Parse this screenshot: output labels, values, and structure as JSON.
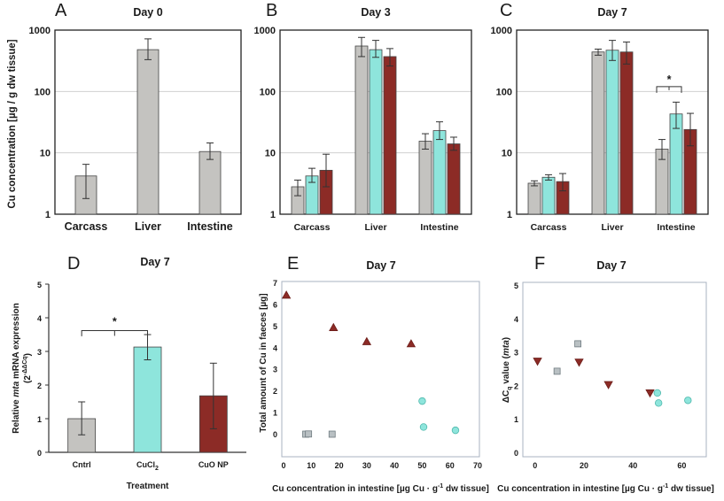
{
  "colors": {
    "cntrl": "#c4c3c0",
    "cucl2": "#8ee5dc",
    "cuonp": "#8c2b26",
    "frame": "#222222",
    "scatter_frame": "#a8b3c2",
    "grid": "#d0d0d0"
  },
  "shared_labels": {
    "y_axis_ABC": "Cu concentration [µg / g dw tissue]",
    "sig_star": "*"
  },
  "chart_data": [
    {
      "id": "A",
      "letter": "A",
      "title": "Day 0",
      "type": "bar",
      "yscale": "log",
      "ylim": [
        1,
        1000
      ],
      "yticks": [
        "1",
        "10",
        "100",
        "1000"
      ],
      "categories": [
        "Carcass",
        "Liver",
        "Intestine"
      ],
      "series": [
        {
          "name": "Cntrl",
          "values": [
            4.2,
            480,
            10.5
          ],
          "err_low": [
            1.8,
            330,
            7.8
          ],
          "err_high": [
            6.5,
            720,
            14.5
          ]
        }
      ]
    },
    {
      "id": "B",
      "letter": "B",
      "title": "Day 3",
      "type": "bar",
      "yscale": "log",
      "ylim": [
        1,
        1000
      ],
      "yticks": [
        "1",
        "10",
        "100",
        "1000"
      ],
      "categories": [
        "Carcass",
        "Liver",
        "Intestine"
      ],
      "series": [
        {
          "name": "Cntrl",
          "values": [
            2.8,
            550,
            15.5
          ],
          "err_low": [
            2.0,
            370,
            11.5
          ],
          "err_high": [
            3.6,
            760,
            20.5
          ]
        },
        {
          "name": "CuCl2",
          "values": [
            4.2,
            480,
            23.0
          ],
          "err_low": [
            3.3,
            360,
            16.5
          ],
          "err_high": [
            5.6,
            680,
            32.0
          ]
        },
        {
          "name": "CuO NP",
          "values": [
            5.2,
            370,
            14.0
          ],
          "err_low": [
            2.8,
            260,
            11.0
          ],
          "err_high": [
            9.5,
            500,
            18.0
          ]
        }
      ]
    },
    {
      "id": "C",
      "letter": "C",
      "title": "Day 7",
      "type": "bar",
      "yscale": "log",
      "ylim": [
        1,
        1000
      ],
      "yticks": [
        "1",
        "10",
        "100",
        "1000"
      ],
      "categories": [
        "Carcass",
        "Liver",
        "Intestine"
      ],
      "series": [
        {
          "name": "Cntrl",
          "values": [
            3.2,
            440,
            11.5
          ],
          "err_low": [
            2.9,
            390,
            7.8
          ],
          "err_high": [
            3.5,
            490,
            16.5
          ]
        },
        {
          "name": "CuCl2",
          "values": [
            4.0,
            470,
            43.0
          ],
          "err_low": [
            3.6,
            320,
            25.0
          ],
          "err_high": [
            4.4,
            680,
            67.0
          ]
        },
        {
          "name": "CuO NP",
          "values": [
            3.4,
            440,
            24.0
          ],
          "err_low": [
            2.4,
            280,
            13.0
          ],
          "err_high": [
            4.6,
            640,
            44.0
          ]
        }
      ],
      "annotation": {
        "text": "*",
        "between": "Intestine Cntrl vs CuCl2"
      }
    },
    {
      "id": "D",
      "letter": "D",
      "title": "Day 7",
      "type": "bar",
      "ylim": [
        0,
        5
      ],
      "yticks": [
        "0",
        "1",
        "2",
        "3",
        "4",
        "5"
      ],
      "categories": [
        "Cntrl",
        "CuCl",
        "CuO NP"
      ],
      "category_subscripts": [
        "",
        "2",
        ""
      ],
      "values": [
        1.0,
        3.13,
        1.68
      ],
      "err_low": [
        0.52,
        2.75,
        0.7
      ],
      "err_high": [
        1.5,
        3.5,
        2.65
      ],
      "ylabel": "Relative mta mRNA expression",
      "ylabel_parts": [
        "Relative ",
        "mta",
        " mRNA expression"
      ],
      "ylabel2": "(2",
      "ylabel2_sup": "-ΔΔCq",
      "ylabel2_end": ")",
      "xlabel": "Treatment",
      "annotation": {
        "text": "*",
        "between": "Cntrl vs CuCl2"
      }
    },
    {
      "id": "E",
      "letter": "E",
      "title": "Day 7",
      "type": "scatter",
      "xlim": [
        0,
        70
      ],
      "ylim": [
        0,
        7
      ],
      "xticks": [
        "0",
        "10",
        "20",
        "30",
        "40",
        "50",
        "60",
        "70"
      ],
      "yticks": [
        "0",
        "1",
        "2",
        "3",
        "4",
        "5",
        "6",
        "7"
      ],
      "xlabel": "Cu concentration in intestine [µg Cu · g",
      "xlabel_sup": "-1",
      "xlabel_end": " dw tissue]",
      "ylabel": "Total amount of Cu in faeces [µg]",
      "series": [
        {
          "name": "CuO NP",
          "marker": "triangle-up",
          "x": [
            1,
            18,
            30,
            46
          ],
          "y": [
            6.45,
            4.95,
            4.3,
            4.2
          ]
        },
        {
          "name": "Cntrl",
          "marker": "square",
          "x": [
            8,
            9,
            17.5
          ],
          "y": [
            0.02,
            0.03,
            0.02
          ]
        },
        {
          "name": "CuCl2",
          "marker": "circle",
          "x": [
            50,
            50.5,
            62
          ],
          "y": [
            1.55,
            0.35,
            0.2
          ]
        }
      ]
    },
    {
      "id": "F",
      "letter": "F",
      "title": "Day 7",
      "type": "scatter",
      "xlim": [
        -5,
        70
      ],
      "ylim": [
        0,
        5
      ],
      "xticks": [
        "0",
        "20",
        "40",
        "60"
      ],
      "yticks": [
        "0",
        "1",
        "2",
        "3",
        "4",
        "5"
      ],
      "xlabel": "Cu concentration in intestine [µg Cu · g",
      "xlabel_sup": "-1",
      "xlabel_end": " dw tissue]",
      "ylabel": "ΔC",
      "ylabel_sub": "q",
      "ylabel_mid": " value (",
      "ylabel_ital": "mta",
      "ylabel_end": ")",
      "series": [
        {
          "name": "CuO NP",
          "marker": "triangle-down",
          "x": [
            1,
            18,
            30,
            47
          ],
          "y": [
            2.75,
            2.72,
            2.05,
            1.8
          ]
        },
        {
          "name": "Cntrl",
          "marker": "square",
          "x": [
            9,
            17.5
          ],
          "y": [
            2.45,
            3.27
          ]
        },
        {
          "name": "CuCl2",
          "marker": "circle",
          "x": [
            50,
            50.5,
            62.5
          ],
          "y": [
            1.8,
            1.5,
            1.58
          ]
        }
      ]
    }
  ]
}
